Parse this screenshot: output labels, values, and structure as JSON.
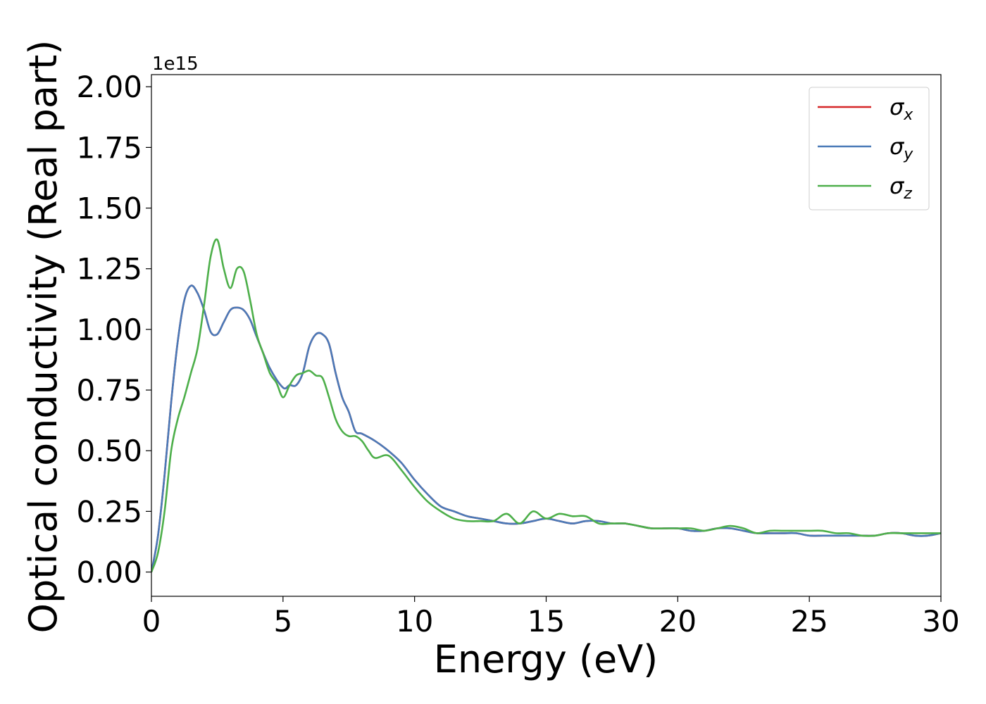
{
  "chart_data": {
    "type": "line",
    "xlabel": "Energy (eV)",
    "ylabel": "Optical conductivity (Real part)",
    "y_offset_text": "1e15",
    "y_scale_factor": 1000000000000000.0,
    "xlim": [
      0,
      30
    ],
    "ylim": [
      -0.1,
      2.05
    ],
    "x_ticks": [
      0,
      5,
      10,
      15,
      20,
      25,
      30
    ],
    "x_tick_labels": [
      "0",
      "5",
      "10",
      "15",
      "20",
      "25",
      "30"
    ],
    "y_ticks": [
      0,
      0.25,
      0.5,
      0.75,
      1.0,
      1.25,
      1.5,
      1.75,
      2.0
    ],
    "y_tick_labels": [
      "0.00",
      "0.25",
      "0.50",
      "0.75",
      "1.00",
      "1.25",
      "1.50",
      "1.75",
      "2.00"
    ],
    "grid": false,
    "legend_position": "top-right",
    "legend": [
      {
        "symbol": "σ",
        "sub": "x"
      },
      {
        "symbol": "σ",
        "sub": "y"
      },
      {
        "symbol": "σ",
        "sub": "z"
      }
    ],
    "series": [
      {
        "color": "#d62728",
        "x": [
          0,
          0.25,
          0.5,
          0.75,
          1.0,
          1.25,
          1.5,
          1.75,
          2.0,
          2.25,
          2.5,
          2.75,
          3.0,
          3.25,
          3.5,
          3.75,
          4.0,
          4.5,
          5.0,
          5.25,
          5.5,
          5.75,
          6.0,
          6.25,
          6.5,
          6.75,
          7.0,
          7.25,
          7.5,
          7.75,
          8.0,
          8.5,
          9.0,
          9.5,
          10.0,
          10.5,
          11.0,
          11.5,
          12.0,
          12.5,
          13.0,
          13.5,
          14.0,
          14.5,
          15.0,
          15.5,
          16.0,
          16.5,
          17.0,
          17.5,
          18.0,
          18.5,
          19.0,
          19.5,
          20.0,
          20.5,
          21.0,
          21.5,
          22.0,
          22.5,
          23.0,
          23.5,
          24.0,
          24.5,
          25.0,
          25.5,
          26.0,
          26.5,
          27.0,
          27.5,
          28.0,
          28.5,
          29.0,
          29.5,
          30.0
        ],
        "y": [
          0.0,
          0.15,
          0.4,
          0.7,
          0.95,
          1.12,
          1.18,
          1.15,
          1.08,
          0.99,
          0.98,
          1.03,
          1.08,
          1.09,
          1.08,
          1.04,
          0.97,
          0.84,
          0.76,
          0.77,
          0.77,
          0.82,
          0.93,
          0.98,
          0.98,
          0.94,
          0.82,
          0.72,
          0.66,
          0.58,
          0.57,
          0.54,
          0.5,
          0.45,
          0.38,
          0.32,
          0.27,
          0.25,
          0.23,
          0.22,
          0.21,
          0.2,
          0.2,
          0.21,
          0.22,
          0.21,
          0.2,
          0.21,
          0.21,
          0.2,
          0.2,
          0.19,
          0.18,
          0.18,
          0.18,
          0.17,
          0.17,
          0.18,
          0.18,
          0.17,
          0.16,
          0.16,
          0.16,
          0.16,
          0.15,
          0.15,
          0.15,
          0.15,
          0.15,
          0.15,
          0.16,
          0.16,
          0.15,
          0.15,
          0.16
        ]
      },
      {
        "color": "#4a7ab8",
        "x": [
          0,
          0.25,
          0.5,
          0.75,
          1.0,
          1.25,
          1.5,
          1.75,
          2.0,
          2.25,
          2.5,
          2.75,
          3.0,
          3.25,
          3.5,
          3.75,
          4.0,
          4.5,
          5.0,
          5.25,
          5.5,
          5.75,
          6.0,
          6.25,
          6.5,
          6.75,
          7.0,
          7.25,
          7.5,
          7.75,
          8.0,
          8.5,
          9.0,
          9.5,
          10.0,
          10.5,
          11.0,
          11.5,
          12.0,
          12.5,
          13.0,
          13.5,
          14.0,
          14.5,
          15.0,
          15.5,
          16.0,
          16.5,
          17.0,
          17.5,
          18.0,
          18.5,
          19.0,
          19.5,
          20.0,
          20.5,
          21.0,
          21.5,
          22.0,
          22.5,
          23.0,
          23.5,
          24.0,
          24.5,
          25.0,
          25.5,
          26.0,
          26.5,
          27.0,
          27.5,
          28.0,
          28.5,
          29.0,
          29.5,
          30.0
        ],
        "y": [
          0.0,
          0.15,
          0.4,
          0.7,
          0.95,
          1.12,
          1.18,
          1.15,
          1.08,
          0.99,
          0.98,
          1.03,
          1.08,
          1.09,
          1.08,
          1.04,
          0.97,
          0.84,
          0.76,
          0.77,
          0.77,
          0.82,
          0.93,
          0.98,
          0.98,
          0.94,
          0.82,
          0.72,
          0.66,
          0.58,
          0.57,
          0.54,
          0.5,
          0.45,
          0.38,
          0.32,
          0.27,
          0.25,
          0.23,
          0.22,
          0.21,
          0.2,
          0.2,
          0.21,
          0.22,
          0.21,
          0.2,
          0.21,
          0.21,
          0.2,
          0.2,
          0.19,
          0.18,
          0.18,
          0.18,
          0.17,
          0.17,
          0.18,
          0.18,
          0.17,
          0.16,
          0.16,
          0.16,
          0.16,
          0.15,
          0.15,
          0.15,
          0.15,
          0.15,
          0.15,
          0.16,
          0.16,
          0.15,
          0.15,
          0.16
        ]
      },
      {
        "color": "#4daf4a",
        "x": [
          0,
          0.25,
          0.5,
          0.75,
          1.0,
          1.25,
          1.5,
          1.75,
          2.0,
          2.25,
          2.5,
          2.75,
          3.0,
          3.25,
          3.5,
          3.75,
          4.0,
          4.25,
          4.5,
          4.75,
          5.0,
          5.25,
          5.5,
          5.75,
          6.0,
          6.25,
          6.5,
          6.75,
          7.0,
          7.25,
          7.5,
          7.75,
          8.0,
          8.25,
          8.5,
          9.0,
          9.5,
          10.0,
          10.5,
          11.0,
          11.5,
          12.0,
          12.5,
          13.0,
          13.5,
          14.0,
          14.5,
          15.0,
          15.5,
          16.0,
          16.5,
          17.0,
          17.5,
          18.0,
          18.5,
          19.0,
          19.5,
          20.0,
          20.5,
          21.0,
          21.5,
          22.0,
          22.5,
          23.0,
          23.5,
          24.0,
          24.5,
          25.0,
          25.5,
          26.0,
          26.5,
          27.0,
          27.5,
          28.0,
          28.5,
          29.0,
          29.5,
          30.0
        ],
        "y": [
          0.0,
          0.08,
          0.25,
          0.5,
          0.63,
          0.72,
          0.82,
          0.92,
          1.1,
          1.3,
          1.37,
          1.25,
          1.17,
          1.25,
          1.24,
          1.12,
          0.98,
          0.9,
          0.82,
          0.78,
          0.72,
          0.77,
          0.81,
          0.82,
          0.83,
          0.81,
          0.8,
          0.72,
          0.63,
          0.58,
          0.56,
          0.56,
          0.54,
          0.5,
          0.47,
          0.48,
          0.42,
          0.35,
          0.29,
          0.25,
          0.22,
          0.21,
          0.21,
          0.21,
          0.24,
          0.2,
          0.25,
          0.22,
          0.24,
          0.23,
          0.23,
          0.2,
          0.2,
          0.2,
          0.19,
          0.18,
          0.18,
          0.18,
          0.18,
          0.17,
          0.18,
          0.19,
          0.18,
          0.16,
          0.17,
          0.17,
          0.17,
          0.17,
          0.17,
          0.16,
          0.16,
          0.15,
          0.15,
          0.16,
          0.16,
          0.16,
          0.16,
          0.16
        ]
      }
    ]
  }
}
